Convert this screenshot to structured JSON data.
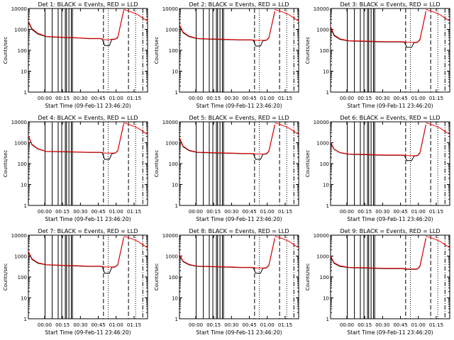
{
  "colors": {
    "background": "#ffffff",
    "axes": "#000000",
    "events": "#000000",
    "lld": "#ff0000"
  },
  "common": {
    "ylabel": "Counts/sec",
    "xlabel": "Start Time (09-Feb-11 23:46:20)",
    "x_tick_labels": [
      "00:00",
      "00:15",
      "00:30",
      "00:45",
      "01:00",
      "01:15"
    ],
    "y_tick_labels": [
      "1",
      "10",
      "100",
      "1000",
      "10000"
    ],
    "y_scale": "log",
    "ylim": [
      1,
      10000
    ],
    "x_ticks_minutes_from_start": [
      13.67,
      28.67,
      43.67,
      58.67,
      73.67,
      88.67
    ],
    "xlim_minutes_from_start": [
      0,
      100
    ]
  },
  "chart_data": [
    {
      "type": "line",
      "title": "Det 1: BLACK = Events, RED = LLD",
      "x_minutes": [
        0,
        3,
        8,
        15,
        25,
        35,
        45,
        50,
        55,
        60,
        62,
        64,
        66,
        68,
        70,
        71,
        73,
        75,
        80
      ],
      "series": [
        {
          "name": "Events",
          "color": "#000000",
          "values": [
            2200,
            1000,
            600,
            450,
            420,
            400,
            380,
            360,
            360,
            360,
            340,
            170,
            170,
            170,
            330,
            330,
            340,
            400,
            8000
          ]
        },
        {
          "name": "LLD",
          "color": "#ff0000",
          "values": [
            2500,
            1100,
            650,
            460,
            430,
            410,
            390,
            370,
            370,
            370,
            350,
            320,
            320,
            320,
            340,
            340,
            350,
            420,
            8500
          ]
        }
      ],
      "vertical_lines": {
        "solid": [
          14,
          20,
          25,
          28,
          31,
          32,
          34,
          36,
          37
        ],
        "dashed": [
          63,
          84
        ],
        "dotted": [
          67,
          90
        ],
        "dashdot": [
          96
        ]
      },
      "tail": {
        "x_minutes": [
          80,
          86,
          92,
          96,
          100
        ],
        "values": [
          9000,
          7000,
          5000,
          3500,
          2500
        ]
      }
    },
    {
      "type": "line",
      "title": "Det 2: BLACK = Events, RED = LLD",
      "x_minutes": [
        0,
        3,
        8,
        15,
        25,
        35,
        45,
        50,
        55,
        60,
        62,
        64,
        66,
        68,
        70,
        71,
        73,
        75,
        80
      ],
      "series": [
        {
          "name": "Events",
          "color": "#000000",
          "values": [
            1500,
            700,
            450,
            360,
            340,
            330,
            320,
            310,
            310,
            310,
            300,
            160,
            160,
            160,
            290,
            290,
            300,
            380,
            7000
          ]
        },
        {
          "name": "LLD",
          "color": "#ff0000",
          "values": [
            1700,
            750,
            480,
            370,
            350,
            340,
            330,
            320,
            320,
            320,
            310,
            300,
            300,
            300,
            300,
            300,
            310,
            400,
            7500
          ]
        }
      ],
      "vertical_lines": {
        "solid": [
          14,
          20,
          25,
          28,
          31,
          32,
          34,
          36,
          37
        ],
        "dashed": [
          63,
          84
        ],
        "dotted": [
          67,
          90
        ],
        "dashdot": [
          96
        ]
      },
      "tail": {
        "x_minutes": [
          80,
          86,
          92,
          96,
          100
        ],
        "values": [
          9000,
          7000,
          5000,
          3500,
          2500
        ]
      }
    },
    {
      "type": "line",
      "title": "Det 3: BLACK = Events, RED = LLD",
      "x_minutes": [
        0,
        3,
        8,
        15,
        25,
        35,
        45,
        50,
        55,
        60,
        62,
        64,
        66,
        68,
        70,
        71,
        73,
        75,
        80
      ],
      "series": [
        {
          "name": "Events",
          "color": "#000000",
          "values": [
            1200,
            500,
            330,
            280,
            270,
            260,
            250,
            250,
            250,
            250,
            240,
            140,
            140,
            140,
            230,
            230,
            240,
            320,
            7000
          ]
        },
        {
          "name": "LLD",
          "color": "#ff0000",
          "values": [
            1400,
            550,
            350,
            290,
            280,
            270,
            260,
            260,
            260,
            260,
            250,
            240,
            240,
            240,
            240,
            240,
            250,
            340,
            7500
          ]
        }
      ],
      "vertical_lines": {
        "solid": [
          14,
          20,
          25,
          28,
          31,
          32,
          34,
          36,
          37
        ],
        "dashed": [
          63,
          84
        ],
        "dotted": [
          67,
          90
        ],
        "dashdot": [
          96
        ]
      },
      "tail": {
        "x_minutes": [
          80,
          86,
          92,
          96,
          100
        ],
        "values": [
          9000,
          7000,
          5000,
          3500,
          2500
        ]
      }
    },
    {
      "type": "line",
      "title": "Det 4: BLACK = Events, RED = LLD",
      "x_minutes": [
        0,
        3,
        8,
        15,
        25,
        35,
        45,
        50,
        55,
        60,
        62,
        64,
        66,
        68,
        70,
        71,
        73,
        75,
        80
      ],
      "series": [
        {
          "name": "Events",
          "color": "#000000",
          "values": [
            2000,
            800,
            500,
            380,
            370,
            360,
            350,
            340,
            340,
            340,
            330,
            160,
            160,
            160,
            300,
            300,
            320,
            400,
            8000
          ]
        },
        {
          "name": "LLD",
          "color": "#ff0000",
          "values": [
            2200,
            850,
            520,
            390,
            380,
            370,
            360,
            350,
            350,
            350,
            340,
            320,
            320,
            320,
            320,
            320,
            330,
            420,
            8500
          ]
        }
      ],
      "vertical_lines": {
        "solid": [
          14,
          20,
          25,
          28,
          31,
          32,
          34,
          36,
          37
        ],
        "dashed": [
          63,
          84
        ],
        "dotted": [
          67,
          90
        ],
        "dashdot": [
          96
        ]
      },
      "tail": {
        "x_minutes": [
          80,
          86,
          92,
          96,
          100
        ],
        "values": [
          9000,
          7000,
          5000,
          3500,
          2500
        ]
      }
    },
    {
      "type": "line",
      "title": "Det 5: BLACK = Events, RED = LLD",
      "x_minutes": [
        0,
        3,
        8,
        15,
        25,
        35,
        45,
        50,
        55,
        60,
        62,
        64,
        66,
        68,
        70,
        71,
        73,
        75,
        80
      ],
      "series": [
        {
          "name": "Events",
          "color": "#000000",
          "values": [
            1600,
            650,
            420,
            340,
            330,
            320,
            310,
            300,
            300,
            300,
            290,
            160,
            160,
            160,
            280,
            280,
            290,
            380,
            7000
          ]
        },
        {
          "name": "LLD",
          "color": "#ff0000",
          "values": [
            1800,
            700,
            440,
            350,
            340,
            330,
            320,
            310,
            310,
            310,
            300,
            290,
            290,
            290,
            290,
            290,
            300,
            400,
            7500
          ]
        }
      ],
      "vertical_lines": {
        "solid": [
          14,
          20,
          25,
          28,
          31,
          32,
          34,
          36,
          37
        ],
        "dashed": [
          63,
          84
        ],
        "dotted": [
          67,
          90
        ],
        "dashdot": [
          96
        ]
      },
      "tail": {
        "x_minutes": [
          80,
          86,
          92,
          96,
          100
        ],
        "values": [
          9000,
          7000,
          5000,
          3500,
          2500
        ]
      }
    },
    {
      "type": "line",
      "title": "Det 6: BLACK = Events, RED = LLD",
      "x_minutes": [
        0,
        3,
        8,
        15,
        25,
        35,
        45,
        50,
        55,
        60,
        62,
        64,
        66,
        68,
        70,
        71,
        73,
        75,
        80
      ],
      "series": [
        {
          "name": "Events",
          "color": "#000000",
          "values": [
            1000,
            480,
            330,
            280,
            270,
            260,
            250,
            250,
            250,
            250,
            240,
            140,
            140,
            140,
            230,
            230,
            240,
            320,
            7000
          ]
        },
        {
          "name": "LLD",
          "color": "#ff0000",
          "values": [
            1100,
            500,
            340,
            290,
            280,
            270,
            260,
            260,
            260,
            260,
            250,
            240,
            240,
            240,
            240,
            240,
            250,
            340,
            7500
          ]
        }
      ],
      "vertical_lines": {
        "solid": [
          14,
          20,
          25,
          28,
          31,
          32,
          34,
          36,
          37
        ],
        "dashed": [
          63,
          84
        ],
        "dotted": [
          67,
          90
        ],
        "dashdot": [
          96
        ]
      },
      "tail": {
        "x_minutes": [
          80,
          86,
          92,
          96,
          100
        ],
        "values": [
          9000,
          7000,
          5000,
          3500,
          2500
        ]
      }
    },
    {
      "type": "line",
      "title": "Det 7: BLACK = Events, RED = LLD",
      "x_minutes": [
        0,
        3,
        8,
        15,
        25,
        35,
        45,
        50,
        55,
        60,
        62,
        64,
        66,
        68,
        70,
        71,
        73,
        75,
        80
      ],
      "series": [
        {
          "name": "Events",
          "color": "#000000",
          "values": [
            1500,
            700,
            450,
            380,
            360,
            340,
            330,
            320,
            320,
            320,
            310,
            150,
            150,
            150,
            290,
            290,
            300,
            380,
            7500
          ]
        },
        {
          "name": "LLD",
          "color": "#ff0000",
          "values": [
            1700,
            750,
            480,
            390,
            370,
            350,
            340,
            330,
            330,
            330,
            320,
            300,
            300,
            300,
            300,
            300,
            310,
            400,
            8000
          ]
        }
      ],
      "vertical_lines": {
        "solid": [
          14,
          20,
          25,
          28,
          31,
          32,
          34,
          36,
          37
        ],
        "dashed": [
          63,
          84
        ],
        "dotted": [
          67,
          90
        ],
        "dashdot": [
          96
        ]
      },
      "tail": {
        "x_minutes": [
          80,
          86,
          92,
          96,
          100
        ],
        "values": [
          9000,
          7000,
          5000,
          3500,
          2500
        ]
      }
    },
    {
      "type": "line",
      "title": "Det 8: BLACK = Events, RED = LLD",
      "x_minutes": [
        0,
        3,
        8,
        15,
        25,
        35,
        45,
        50,
        55,
        60,
        62,
        64,
        66,
        68,
        70,
        71,
        73,
        75,
        80
      ],
      "series": [
        {
          "name": "Events",
          "color": "#000000",
          "values": [
            1100,
            550,
            380,
            320,
            310,
            300,
            290,
            280,
            280,
            280,
            270,
            150,
            150,
            150,
            260,
            260,
            270,
            350,
            7000
          ]
        },
        {
          "name": "LLD",
          "color": "#ff0000",
          "values": [
            1200,
            580,
            400,
            330,
            320,
            310,
            300,
            290,
            290,
            290,
            280,
            270,
            270,
            270,
            270,
            270,
            280,
            370,
            7500
          ]
        }
      ],
      "vertical_lines": {
        "solid": [
          14,
          20,
          25,
          28,
          31,
          32,
          34,
          36,
          37
        ],
        "dashed": [
          63,
          84
        ],
        "dotted": [
          67,
          90
        ],
        "dashdot": [
          96
        ]
      },
      "tail": {
        "x_minutes": [
          80,
          86,
          92,
          96,
          100
        ],
        "values": [
          9000,
          7000,
          5000,
          3500,
          2500
        ]
      }
    },
    {
      "type": "line",
      "title": "Det 9: BLACK = Events, RED = LLD",
      "x_minutes": [
        0,
        3,
        8,
        15,
        25,
        35,
        45,
        50,
        55,
        60,
        62,
        64,
        66,
        68,
        70,
        71,
        73,
        75,
        80
      ],
      "series": [
        {
          "name": "Events",
          "color": "#000000",
          "values": [
            900,
            450,
            320,
            280,
            270,
            260,
            250,
            250,
            250,
            250,
            240,
            230,
            230,
            230,
            230,
            230,
            240,
            320,
            7000
          ]
        },
        {
          "name": "LLD",
          "color": "#ff0000",
          "values": [
            1000,
            480,
            340,
            290,
            280,
            270,
            260,
            260,
            260,
            260,
            250,
            240,
            240,
            240,
            240,
            240,
            250,
            340,
            7500
          ]
        }
      ],
      "vertical_lines": {
        "solid": [
          14,
          20,
          25,
          28,
          31,
          32,
          34,
          36,
          37
        ],
        "dashed": [
          63,
          84
        ],
        "dotted": [
          67,
          90
        ],
        "dashdot": [
          96
        ]
      },
      "tail": {
        "x_minutes": [
          80,
          86,
          92,
          96,
          100
        ],
        "values": [
          9000,
          7000,
          5000,
          3500,
          2500
        ]
      }
    }
  ]
}
